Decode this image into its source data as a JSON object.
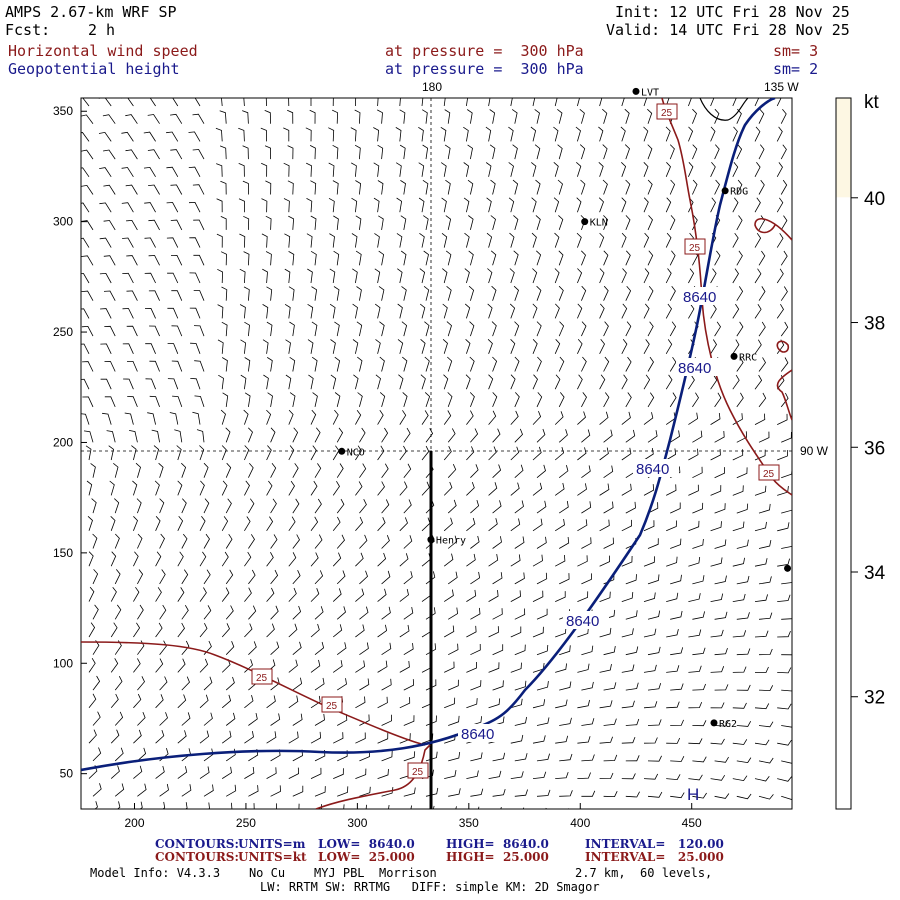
{
  "header": {
    "model_title": "AMPS 2.67-km WRF SP",
    "forecast_label": "Fcst:",
    "forecast_value": "2 h",
    "init": "Init: 12 UTC Fri 28 Nov 25",
    "valid": "Valid: 14 UTC Fri 28 Nov 25",
    "field1_name": "Horizontal wind speed",
    "field1_level": "at pressure =  300 hPa",
    "field1_smooth": "sm= 3",
    "field2_name": "Geopotential height",
    "field2_level": "at pressure =  300 hPa",
    "field2_smooth": "sm= 2"
  },
  "map": {
    "meridian_labels": [
      "180",
      "135 W",
      "90 W"
    ],
    "x_ticks": [
      "200",
      "250",
      "300",
      "350",
      "400",
      "450"
    ],
    "y_ticks": [
      "350",
      "300",
      "250",
      "200",
      "150",
      "100",
      "50"
    ],
    "x_range": [
      176,
      495
    ],
    "y_range": [
      34,
      356
    ],
    "stations": [
      {
        "name": "LVT",
        "x": 425,
        "y": 359
      },
      {
        "name": "RDG",
        "x": 465,
        "y": 314
      },
      {
        "name": "KLN",
        "x": 402,
        "y": 300
      },
      {
        "name": "RRC",
        "x": 469,
        "y": 239
      },
      {
        "name": "NCO",
        "x": 293,
        "y": 196
      },
      {
        "name": "Henry",
        "x": 333,
        "y": 156
      },
      {
        "name": "RG2",
        "x": 460,
        "y": 73
      },
      {
        "name": "",
        "x": 493,
        "y": 143
      }
    ],
    "height_contour_value": "8640",
    "speed_contour_value": "25",
    "high_marker": "H"
  },
  "colorbar": {
    "unit": "kt",
    "labels": [
      "40",
      "38",
      "36",
      "34",
      "32"
    ],
    "range": [
      30.2,
      41.6
    ],
    "fill_color": "#fdf7e3"
  },
  "footer": {
    "row1_label": "CONTOURS:",
    "row1_units": "UNITS=m",
    "row1_low": "LOW=  8640.0",
    "row1_high": "HIGH=  8640.0",
    "row1_interval": "INTERVAL=   120.00",
    "row2_label": "CONTOURS:",
    "row2_units": "UNITS=kt",
    "row2_low": "LOW=  25.000",
    "row2_high": "HIGH=  25.000",
    "row2_interval": "INTERVAL=   25.000",
    "model_info": "Model Info: V4.3.3    No Cu    MYJ PBL  Morrison",
    "resolution": "2.7 km,  60 levels,",
    "physics": "LW: RRTM SW: RRTMG   DIFF: simple KM: 2D Smagor"
  },
  "colors": {
    "height_contour": "#0a1f7a",
    "speed_contour": "#8b1a1a",
    "barb": "#000000"
  }
}
